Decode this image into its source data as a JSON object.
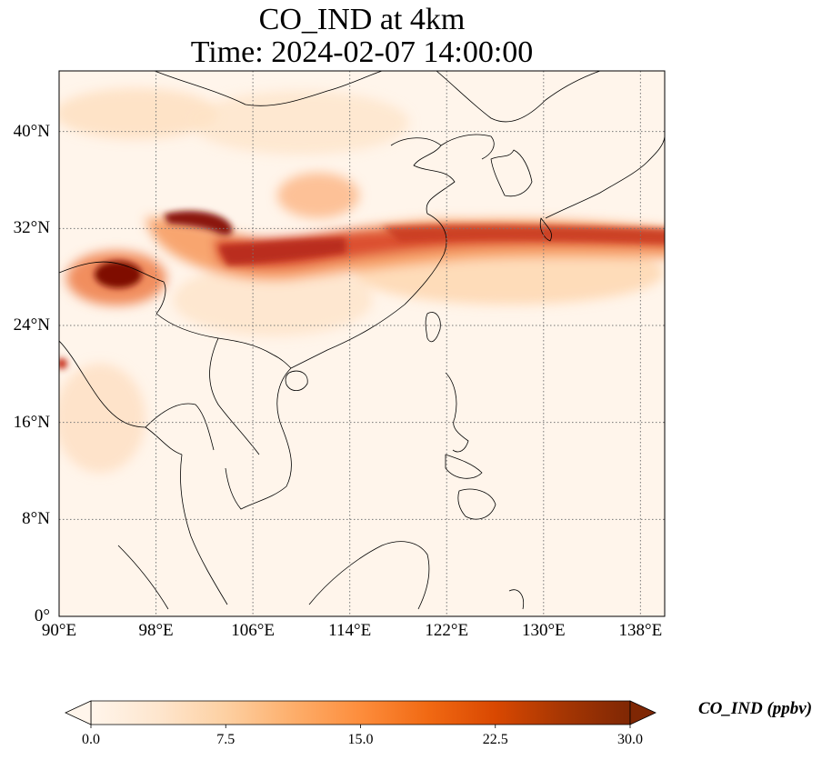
{
  "title": {
    "line1": "CO_IND at 4km",
    "line2": "Time: 2024-02-07 14:00:00"
  },
  "map": {
    "projection": "PlateCarree",
    "lon_range": [
      90,
      140
    ],
    "lat_range": [
      0,
      45
    ],
    "gridlines": "dotted",
    "lon_ticks": [
      {
        "value": 90,
        "label": "90°E"
      },
      {
        "value": 98,
        "label": "98°E"
      },
      {
        "value": 106,
        "label": "106°E"
      },
      {
        "value": 114,
        "label": "114°E"
      },
      {
        "value": 122,
        "label": "122°E"
      },
      {
        "value": 130,
        "label": "130°E"
      },
      {
        "value": 138,
        "label": "138°E"
      }
    ],
    "lat_ticks": [
      {
        "value": 0,
        "label": "0°"
      },
      {
        "value": 8,
        "label": "8°N"
      },
      {
        "value": 16,
        "label": "16°N"
      },
      {
        "value": 24,
        "label": "24°N"
      },
      {
        "value": 32,
        "label": "32°N"
      },
      {
        "value": 40,
        "label": "40°N"
      }
    ]
  },
  "colorbar": {
    "label": "CO_IND (ppbv)",
    "cmap": [
      "#fff5eb",
      "#fee6ce",
      "#fdd0a2",
      "#fdae6b",
      "#fd8d3c",
      "#f16913",
      "#d94801",
      "#a63603",
      "#7f2704"
    ],
    "range": [
      0,
      30
    ],
    "extend": "both",
    "ticks": [
      {
        "value": 0,
        "label": "0.0"
      },
      {
        "value": 7.5,
        "label": "7.5"
      },
      {
        "value": 15,
        "label": "15.0"
      },
      {
        "value": 22.5,
        "label": "22.5"
      },
      {
        "value": 30,
        "label": "30.0"
      }
    ]
  }
}
